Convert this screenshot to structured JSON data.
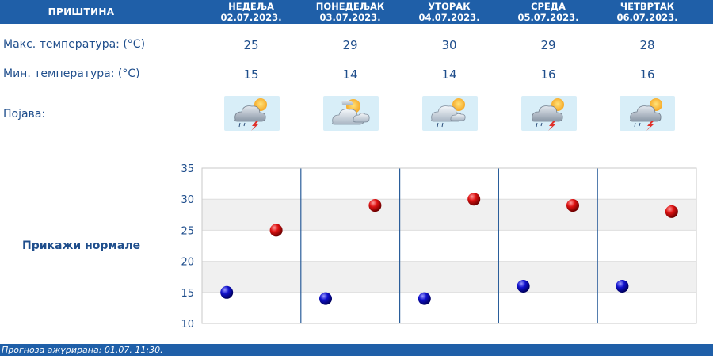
{
  "header": {
    "city": "ПРИШТИНА"
  },
  "days": [
    {
      "name": "НЕДЕЉА",
      "date": "02.07.2023.",
      "max": "25",
      "min": "15",
      "icon": "cloud-storm-sun-icon"
    },
    {
      "name": "ПОНЕДЕЉАК",
      "date": "03.07.2023.",
      "max": "29",
      "min": "14",
      "icon": "cloud-sun-icon"
    },
    {
      "name": "УТОРАК",
      "date": "04.07.2023.",
      "max": "30",
      "min": "14",
      "icon": "cloud-rain-sun-icon"
    },
    {
      "name": "СРЕДА",
      "date": "05.07.2023.",
      "max": "29",
      "min": "16",
      "icon": "cloud-storm-sun-icon"
    },
    {
      "name": "ЧЕТВРТАК",
      "date": "06.07.2023.",
      "max": "28",
      "min": "16",
      "icon": "cloud-storm-sun-icon"
    }
  ],
  "labels": {
    "max": "Макс. температура: (°C)",
    "min": "Мин. температура: (°C)",
    "phenomenon": "Појава:",
    "show_normals": "Прикажи нормале"
  },
  "footer": {
    "updated": "Прогноза ажурирана:  01.07.  11:30."
  },
  "colors": {
    "brand": "#1f5fa8",
    "text": "#1f4e8c",
    "max_marker": "#cc0000",
    "min_marker": "#0000bb",
    "band": "#f0f0f0"
  },
  "chart_data": {
    "type": "scatter",
    "categories": [
      "02.07.2023.",
      "03.07.2023.",
      "04.07.2023.",
      "05.07.2023.",
      "06.07.2023."
    ],
    "series": [
      {
        "values": [
          25,
          29,
          30,
          29,
          28
        ],
        "color": "#cc0000"
      },
      {
        "values": [
          15,
          14,
          14,
          16,
          16
        ],
        "color": "#0000bb"
      }
    ],
    "ylim": [
      10,
      35
    ],
    "yticks": [
      10,
      15,
      20,
      25,
      30,
      35
    ],
    "grid": true,
    "legend": "none"
  }
}
